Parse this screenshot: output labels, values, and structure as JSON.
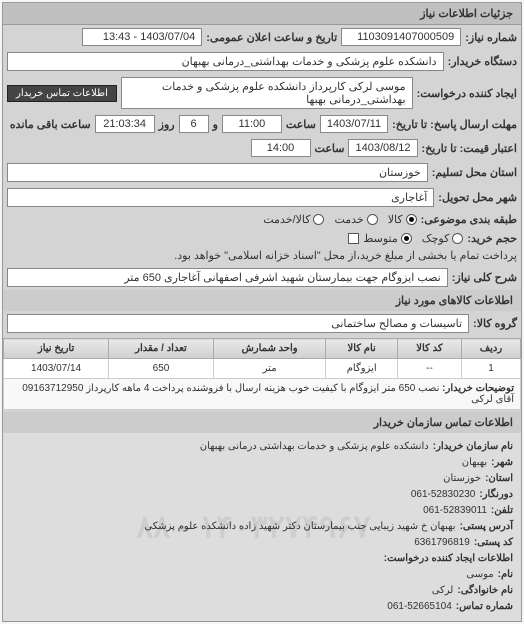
{
  "panel_title": "جزئیات اطلاعات نیاز",
  "req_no_label": "شماره نیاز:",
  "req_no": "1103091407000509",
  "announce_label": "تاریخ و ساعت اعلان عمومی:",
  "announce_val": "1403/07/04 - 13:43",
  "buyer_label": "دستگاه خریدار:",
  "buyer_val": "دانشکده علوم پزشکی و خدمات بهداشتی_درمانی بهبهان",
  "requester_label": "ایجاد کننده درخواست:",
  "requester_val": "موسی لرکی کارپرداز دانشکده علوم پزشکی و خدمات بهداشتی_درمانی بهبها",
  "contact_btn": "اطلاعات تماس خریدار",
  "deadline_send_label": "مهلت ارسال پاسخ: تا تاریخ:",
  "deadline_date": "1403/07/11",
  "time_label": "ساعت",
  "deadline_time": "11:00",
  "remain_label": "و",
  "remain_days": "6",
  "remain_label2": "روز",
  "remain_time": "21:03:34",
  "remain_label3": "ساعت باقی مانده",
  "valid_label": "اعتبار قیمت: تا تاریخ:",
  "valid_date": "1403/08/12",
  "valid_time": "14:00",
  "province_label": "استان محل تسلیم:",
  "province_val": "خوزستان",
  "city_label": "شهر محل تحویل:",
  "city_val": "آغاجاری",
  "budget_label": "طبقه بندی موضوعی:",
  "radio_goods": "کالا",
  "radio_service": "خدمت",
  "radio_both": "کالا/خدمت",
  "volume_label": "حجم خرید:",
  "radio_small": "کوچک",
  "radio_med": "متوسط",
  "pay_note": "پرداخت تمام یا بخشی از مبلغ خرید،از محل \"اسناد خزانه اسلامی\" خواهد بود.",
  "need_title_label": "شرح کلی نیاز:",
  "need_title_val": "نصب ایزوگام جهت بیمارستان شهید اشرفی اصفهانی آغاجاری 650 متر",
  "goods_section": "اطلاعات کالاهای مورد نیاز",
  "group_label": "گروه کالا:",
  "group_val": "تاسیسات و مصالح ساختمانی",
  "table": {
    "headers": [
      "ردیف",
      "کد کالا",
      "نام کالا",
      "واحد شمارش",
      "تعداد / مقدار",
      "تاریخ نیاز"
    ],
    "row": [
      "1",
      "--",
      "ایزوگام",
      "متر",
      "650",
      "1403/07/14"
    ],
    "desc_label": "توضیحات خریدار:",
    "desc_val": "نصب 650 متر ایزوگام با کیفیت خوب هزینه ارسال با فروشنده پرداخت 4 ماهه کارپرداز 09163712950 آقای لرکی"
  },
  "contact_section": "اطلاعات تماس سازمان خریدار",
  "contact": {
    "org_label": "نام سازمان خریدار:",
    "org": "دانشکده علوم پزشکی و خدمات بهداشتی درمانی بهبهان",
    "city_label": "شهر:",
    "city": "بهبهان",
    "prov_label": "استان:",
    "prov": "خوزستان",
    "fax_label": "دورنگار:",
    "fax": "061-52830230",
    "tel_label": "تلفن:",
    "tel": "061-52839011",
    "addr_label": "آدرس پستی:",
    "addr": "بهبهان خ شهید زیبایی جنب بیمارستان دکتر شهید زاده دانشکده علوم پزشکی",
    "post_label": "کد پستی:",
    "post": "6361796819",
    "req_section": "اطلاعات ایجاد کننده درخواست:",
    "fname_label": "نام:",
    "fname": "موسی",
    "lname_label": "نام خانوادگی:",
    "lname": "لرکی",
    "rtel_label": "شماره تماس:",
    "rtel": "061-52665104"
  },
  "watermark": "۱۴۰۳۲۷۴۹۶۷۰ - ۸۸"
}
